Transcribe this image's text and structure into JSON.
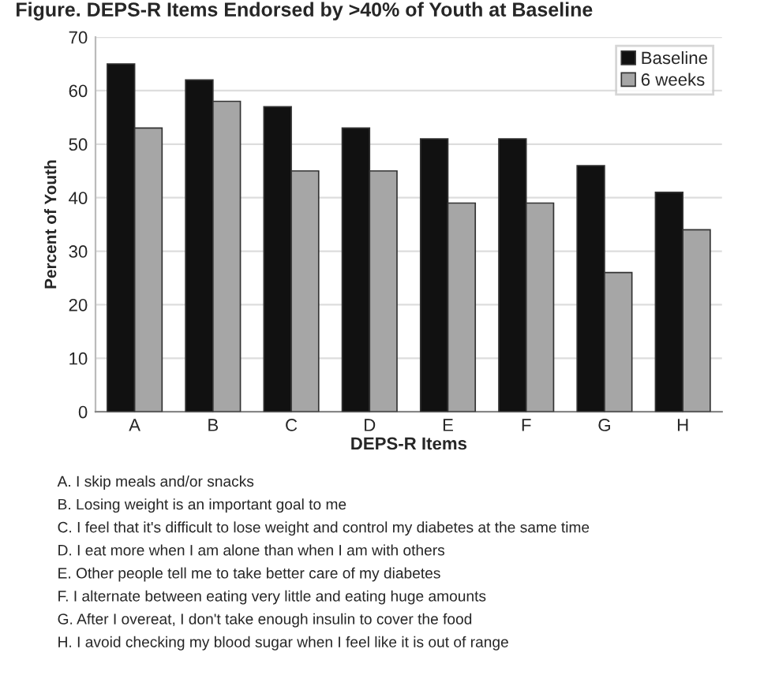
{
  "chart_data": {
    "type": "bar",
    "title": "Figure. DEPS-R Items Endorsed by >40% of Youth at Baseline",
    "xlabel": "DEPS-R Items",
    "ylabel": "Percent of Youth",
    "categories": [
      "A",
      "B",
      "C",
      "D",
      "E",
      "F",
      "G",
      "H"
    ],
    "series": [
      {
        "name": "Baseline",
        "color": "#111111",
        "values": [
          65,
          62,
          57,
          53,
          51,
          51,
          46,
          41
        ]
      },
      {
        "name": "6 weeks",
        "color": "#a6a6a6",
        "values": [
          53,
          58,
          45,
          45,
          39,
          39,
          26,
          34
        ]
      }
    ],
    "ylim": [
      0,
      70
    ],
    "yticks": [
      0,
      10,
      20,
      30,
      40,
      50,
      60,
      70
    ],
    "grid": "y",
    "legend": "top right",
    "annotations": [
      "A. I skip meals and/or snacks",
      "B. Losing weight is an important goal to me",
      "C. I feel that it's difficult to lose weight and control my diabetes at the same time",
      "D. I eat more when I am alone than when I am with others",
      "E. Other people tell me to take better care of my diabetes",
      "F. I alternate between eating very little and eating huge amounts",
      "G. After I overeat, I don't take enough insulin to cover the food",
      "H. I avoid checking my blood sugar when I feel like it is out of range"
    ]
  }
}
